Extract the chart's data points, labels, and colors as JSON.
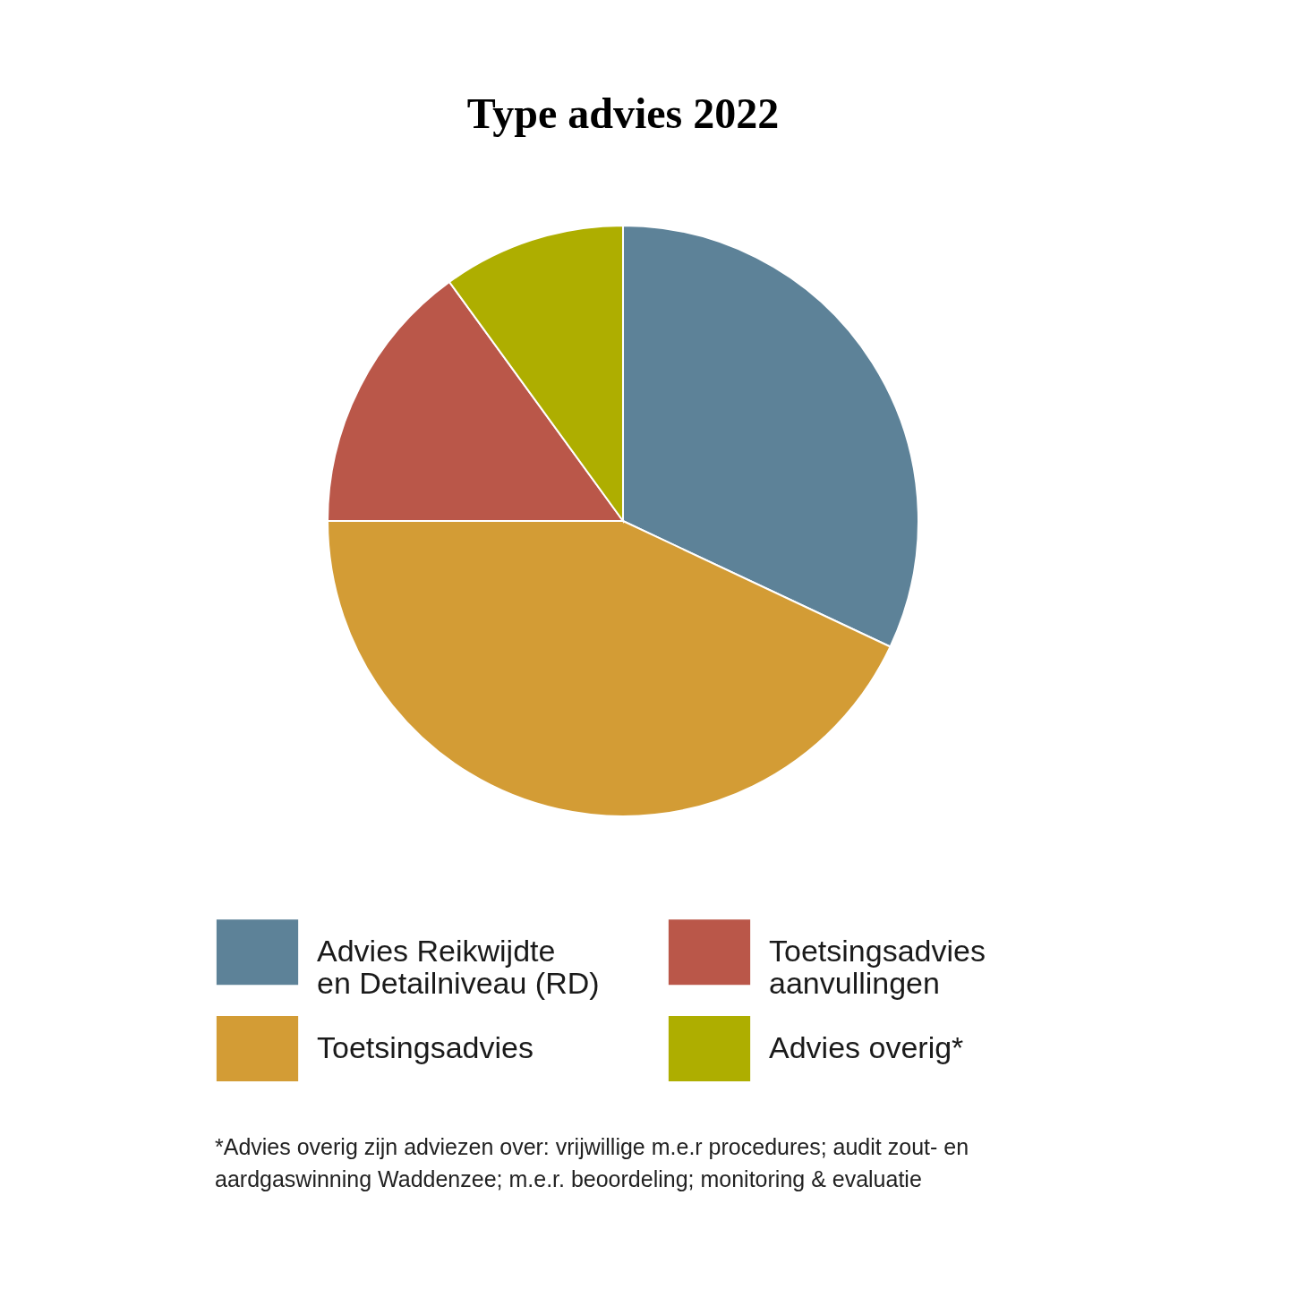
{
  "chart_data": {
    "type": "pie",
    "title": "Type advies 2022",
    "categories": [
      "Advies Reikwijdte en Detailniveau (RD)",
      "Toetsingsadvies",
      "Toetsingsadvies aanvullingen",
      "Advies overig*"
    ],
    "values": [
      32,
      43,
      15,
      10
    ],
    "colors": [
      "#5d8298",
      "#d39c35",
      "#ba5749",
      "#aeae00"
    ],
    "legend": "bottom",
    "annotations": [
      "*Advies overig zijn adviezen over: vrijwillige m.e.r procedures; audit zout- en aardgaswinning Waddenzee; m.e.r. beoordeling; monitoring & evaluatie"
    ]
  }
}
